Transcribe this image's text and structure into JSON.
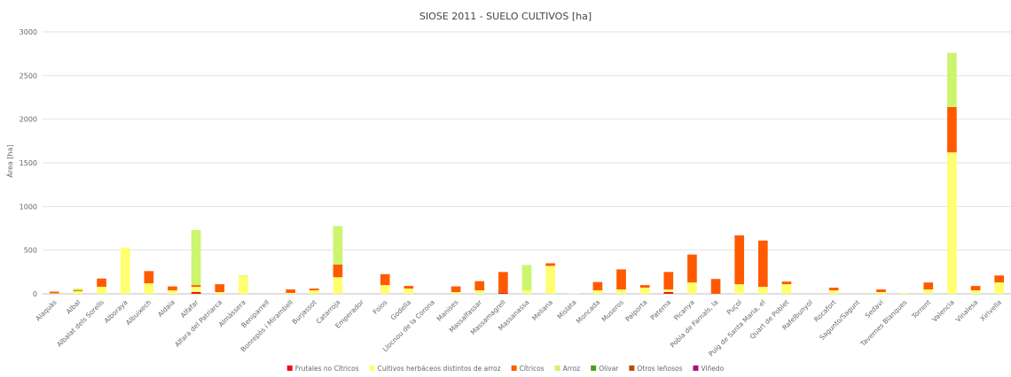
{
  "chart_data": {
    "type": "bar",
    "stacked": true,
    "title": "SIOSE 2011 - SUELO CULTIVOS [ha]",
    "xlabel": "",
    "ylabel": "Área [ha]",
    "ylim": [
      0,
      3000
    ],
    "yticks": [
      "0",
      "500",
      "1000",
      "1500",
      "2000",
      "2500",
      "3000"
    ],
    "grid": true,
    "legend_position": "bottom",
    "categories": [
      "Alaquàs",
      "Albal",
      "Albalat dels Sorells",
      "Alboraya",
      "Albuixech",
      "Aldaia",
      "Alfafar",
      "Alfara del Patriarca",
      "Almàssera",
      "Beniparrell",
      "Bonrepòs i Mirambell",
      "Burjassot",
      "Catarroja",
      "Emperador",
      "Foios",
      "Godella",
      "Llocnou de la Corona",
      "Manises",
      "Massalfassar",
      "Massamagrell",
      "Massanassa",
      "Meliana",
      "Mislata",
      "Moncada",
      "Museros",
      "Paiporta",
      "Paterna",
      "Picanya",
      "Pobla de Farnals, la",
      "Puçol",
      "Puig de Santa Maria, el",
      "Quart de Poblet",
      "Rafelbunyol",
      "Rocafort",
      "Sagunto/Sagunt",
      "Sedaví",
      "Tavernes Blanques",
      "Torrent",
      "Valencia",
      "Vinalesa",
      "Xirivella"
    ],
    "series": [
      {
        "name": "Frutales no Cítricos",
        "color": "#e3131b",
        "values": [
          0,
          0,
          0,
          0,
          0,
          0,
          20,
          0,
          0,
          0,
          0,
          0,
          0,
          0,
          0,
          0,
          0,
          0,
          0,
          10,
          0,
          0,
          0,
          0,
          0,
          0,
          20,
          0,
          0,
          0,
          0,
          0,
          0,
          0,
          0,
          0,
          0,
          0,
          0,
          0,
          0
        ]
      },
      {
        "name": "Cultivos herbáceos distintos de arroz",
        "color": "#ffff70",
        "values": [
          5,
          30,
          80,
          530,
          120,
          40,
          60,
          20,
          200,
          0,
          10,
          40,
          190,
          0,
          100,
          60,
          0,
          20,
          40,
          0,
          40,
          320,
          5,
          40,
          50,
          70,
          30,
          130,
          0,
          110,
          80,
          110,
          0,
          40,
          0,
          20,
          10,
          50,
          1620,
          40,
          130
        ]
      },
      {
        "name": "Cítricos",
        "color": "#ff5a00",
        "values": [
          20,
          10,
          95,
          0,
          140,
          45,
          20,
          90,
          0,
          0,
          40,
          20,
          145,
          0,
          125,
          30,
          0,
          65,
          105,
          240,
          0,
          30,
          0,
          95,
          230,
          30,
          200,
          320,
          170,
          560,
          530,
          30,
          0,
          30,
          0,
          30,
          0,
          80,
          520,
          50,
          80
        ]
      },
      {
        "name": "Arroz",
        "color": "#ccf56e",
        "values": [
          0,
          20,
          0,
          0,
          0,
          0,
          630,
          0,
          10,
          0,
          0,
          0,
          440,
          0,
          0,
          0,
          0,
          0,
          0,
          0,
          290,
          0,
          0,
          0,
          0,
          0,
          0,
          0,
          0,
          0,
          0,
          0,
          0,
          0,
          0,
          0,
          0,
          0,
          620,
          0,
          0
        ]
      },
      {
        "name": "Olivar",
        "color": "#4aa01c",
        "values": [
          0,
          0,
          0,
          0,
          0,
          0,
          0,
          0,
          0,
          0,
          0,
          0,
          0,
          0,
          0,
          0,
          0,
          0,
          0,
          0,
          0,
          0,
          0,
          0,
          0,
          0,
          0,
          0,
          0,
          0,
          0,
          0,
          0,
          0,
          0,
          0,
          0,
          0,
          0,
          0,
          0
        ]
      },
      {
        "name": "Otros leñosos",
        "color": "#b4500e",
        "values": [
          0,
          0,
          0,
          0,
          0,
          0,
          0,
          0,
          0,
          0,
          0,
          0,
          0,
          0,
          0,
          0,
          0,
          0,
          0,
          0,
          0,
          0,
          0,
          0,
          0,
          0,
          0,
          0,
          0,
          0,
          0,
          0,
          0,
          0,
          0,
          0,
          0,
          0,
          0,
          0,
          0
        ]
      },
      {
        "name": "Viñedo",
        "color": "#a0167a",
        "values": [
          0,
          0,
          0,
          0,
          0,
          0,
          0,
          0,
          0,
          0,
          0,
          0,
          0,
          0,
          0,
          0,
          0,
          0,
          0,
          0,
          0,
          0,
          0,
          0,
          0,
          0,
          0,
          0,
          0,
          0,
          0,
          0,
          0,
          0,
          0,
          0,
          0,
          0,
          0,
          0,
          0
        ]
      }
    ]
  }
}
